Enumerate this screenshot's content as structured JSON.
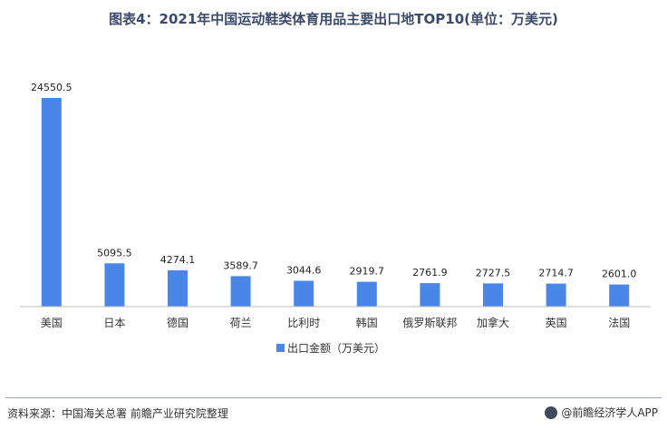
{
  "chart_data": {
    "type": "bar",
    "title": "图表4：2021年中国运动鞋类体育用品主要出口地TOP10(单位：万美元)",
    "categories": [
      "美国",
      "日本",
      "德国",
      "荷兰",
      "比利时",
      "韩国",
      "俄罗斯联邦",
      "加拿大",
      "英国",
      "法国"
    ],
    "series": [
      {
        "name": "出口金额（万美元）",
        "values": [
          24550.5,
          5095.5,
          4274.1,
          3589.7,
          3044.6,
          2919.7,
          2761.9,
          2727.5,
          2714.7,
          2601.0
        ],
        "value_labels": [
          "24550.5",
          "5095.5",
          "4274.1",
          "3589.7",
          "3044.6",
          "2919.7",
          "2761.9",
          "2727.5",
          "2714.7",
          "2601.0"
        ]
      }
    ],
    "ylim": [
      0,
      25000
    ],
    "grid": false,
    "legend_position": "bottom",
    "bar_color": "#4a86e8"
  },
  "footer": {
    "source": "资料来源：中国海关总署 前瞻产业研究院整理",
    "brand": "@前瞻经济学人APP"
  }
}
